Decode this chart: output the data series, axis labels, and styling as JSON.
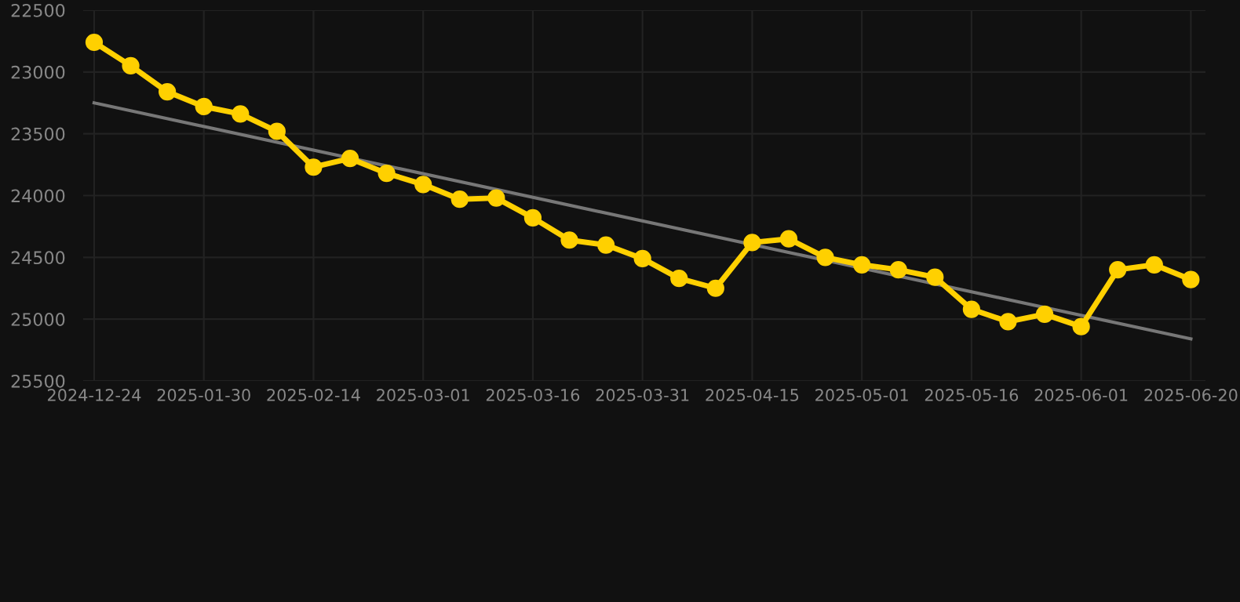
{
  "chart_data": {
    "type": "line",
    "categories": [
      "2024-12-24",
      null,
      null,
      "2025-01-30",
      null,
      null,
      "2025-02-14",
      null,
      null,
      "2025-03-01",
      null,
      null,
      "2025-03-16",
      null,
      null,
      "2025-03-31",
      null,
      null,
      "2025-04-15",
      null,
      null,
      "2025-05-01",
      null,
      null,
      "2025-05-16",
      null,
      null,
      "2025-06-01",
      null,
      null,
      "2025-06-20"
    ],
    "series": [
      {
        "color": "#ffd000",
        "marker": "circle",
        "values": [
          22760,
          22950,
          23160,
          23280,
          23340,
          23480,
          23770,
          23700,
          23820,
          23910,
          24030,
          24020,
          24180,
          24360,
          24400,
          24510,
          24670,
          24750,
          24380,
          24350,
          24500,
          24560,
          24600,
          24660,
          24920,
          25020,
          24960,
          25060,
          24600,
          24560,
          24680
        ]
      },
      {
        "color": "#777777",
        "marker": "none",
        "values": [
          23250,
          null,
          null,
          null,
          null,
          null,
          null,
          null,
          null,
          null,
          null,
          null,
          null,
          null,
          null,
          null,
          null,
          null,
          null,
          null,
          null,
          null,
          null,
          null,
          null,
          null,
          null,
          null,
          null,
          null,
          25160
        ]
      }
    ],
    "ylim": [
      25500,
      22500
    ],
    "yticks": [
      22500,
      23000,
      23500,
      24000,
      24500,
      25000,
      25500
    ],
    "grid": true,
    "line_style": "solid"
  }
}
